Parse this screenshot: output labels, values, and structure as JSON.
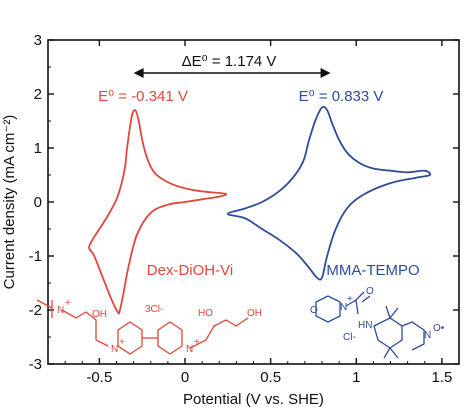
{
  "chart_data": {
    "type": "line",
    "xlabel": "Potential (V vs. SHE)",
    "ylabel": "Current density (mA cm⁻²)",
    "xlim": [
      -0.8,
      1.6
    ],
    "ylim": [
      -3,
      3
    ],
    "xticks": [
      "-0.5",
      "0",
      "0.5",
      "1",
      "1.5"
    ],
    "xtick_values": [
      -0.5,
      0,
      0.5,
      1,
      1.5
    ],
    "yticks": [
      "-3",
      "-2",
      "-1",
      "0",
      "1",
      "2",
      "3"
    ],
    "ytick_values": [
      -3,
      -2,
      -1,
      0,
      1,
      2,
      3
    ],
    "grid": false,
    "series": [
      {
        "name": "Dex-DiOH-Vi",
        "color": "#e0463c",
        "x": [
          -0.33,
          -0.31,
          -0.29,
          -0.27,
          -0.25,
          -0.22,
          -0.18,
          -0.12,
          -0.05,
          0.05,
          0.15,
          0.24,
          0.2,
          0.1,
          0.0,
          -0.1,
          -0.2,
          -0.28,
          -0.33,
          -0.36,
          -0.38,
          -0.39,
          -0.43,
          -0.48,
          -0.53,
          -0.56,
          -0.54,
          -0.5,
          -0.45,
          -0.4,
          -0.37,
          -0.35,
          -0.34,
          -0.33
        ],
        "y": [
          1.2,
          1.6,
          1.7,
          1.5,
          1.15,
          0.8,
          0.55,
          0.4,
          0.3,
          0.22,
          0.18,
          0.15,
          0.1,
          0.05,
          0.0,
          -0.05,
          -0.2,
          -0.6,
          -1.2,
          -1.7,
          -2.0,
          -2.05,
          -1.8,
          -1.4,
          -1.0,
          -0.85,
          -0.7,
          -0.5,
          -0.25,
          0.05,
          0.35,
          0.65,
          0.95,
          1.2
        ]
      },
      {
        "name": "MMA-TEMPO",
        "color": "#2f4b9a",
        "x": [
          0.72,
          0.76,
          0.8,
          0.83,
          0.86,
          0.9,
          0.95,
          1.02,
          1.1,
          1.2,
          1.3,
          1.4,
          1.43,
          1.35,
          1.2,
          1.05,
          0.95,
          0.88,
          0.83,
          0.8,
          0.77,
          0.72,
          0.65,
          0.55,
          0.45,
          0.35,
          0.25,
          0.35,
          0.45,
          0.55,
          0.63,
          0.69,
          0.72
        ],
        "y": [
          1.1,
          1.5,
          1.75,
          1.7,
          1.45,
          1.15,
          0.9,
          0.72,
          0.62,
          0.58,
          0.55,
          0.58,
          0.5,
          0.45,
          0.35,
          0.15,
          -0.1,
          -0.5,
          -1.0,
          -1.4,
          -1.4,
          -1.2,
          -0.95,
          -0.7,
          -0.5,
          -0.3,
          -0.22,
          -0.12,
          0.0,
          0.2,
          0.45,
          0.75,
          1.1
        ]
      }
    ],
    "annotations": {
      "delta_label": "ΔE⁰ = 1.174 V",
      "left_e0": "E⁰ = -0.341 V",
      "right_e0": "E⁰ = 0.833 V",
      "left_name": "Dex-DiOH-Vi",
      "right_name": "MMA-TEMPO",
      "arrow_from": -0.3,
      "arrow_to": 0.85
    },
    "structures": {
      "viologen_labels": [
        "N",
        "+",
        "OH",
        "3Cl-",
        "HO",
        "OH",
        "N",
        "+",
        "N",
        "+"
      ],
      "tempo_labels": [
        "O",
        "N",
        "+",
        "O",
        "HN",
        "Cl-",
        "N",
        "O•"
      ]
    }
  },
  "colors": {
    "red": "#e0463c",
    "blue": "#2f4b9a",
    "axis": "#111111"
  }
}
